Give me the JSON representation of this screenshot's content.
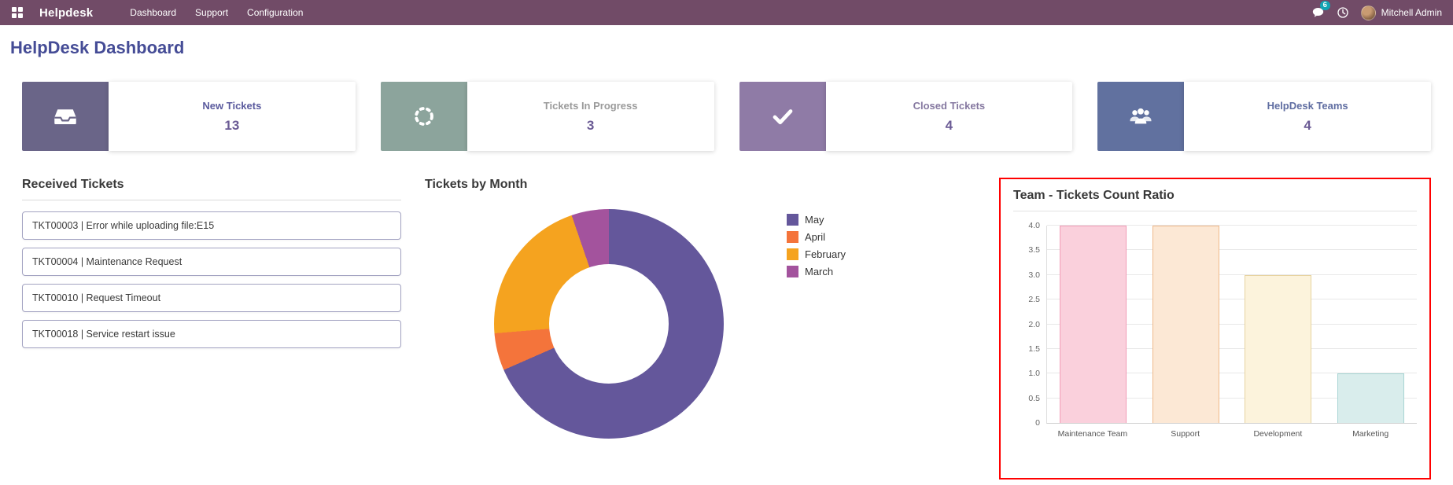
{
  "colors": {
    "navbar_bg": "#714B67",
    "title_color": "#454C96",
    "kpi_number_color": "#6B5B95",
    "badge_bg": "#12A5B4",
    "highlight_border": "#FF0000"
  },
  "navbar": {
    "brand": "Helpdesk",
    "menu": [
      "Dashboard",
      "Support",
      "Configuration"
    ],
    "messages_badge": "6",
    "user_name": "Mitchell Admin",
    "icons": [
      "apps-grid-icon",
      "messages-icon",
      "activity-clock-icon"
    ]
  },
  "page": {
    "title": "HelpDesk Dashboard"
  },
  "kpis": [
    {
      "label": "New Tickets",
      "value": "13",
      "icon": "inbox-icon",
      "box_color": "#6A6588",
      "label_color": "#5B5B9E"
    },
    {
      "label": "Tickets In Progress",
      "value": "3",
      "icon": "spinner-icon",
      "box_color": "#8CA49C",
      "label_color": "#9B9B9B"
    },
    {
      "label": "Closed Tickets",
      "value": "4",
      "icon": "check-icon",
      "box_color": "#8F7BA6",
      "label_color": "#8578A0"
    },
    {
      "label": "HelpDesk Teams",
      "value": "4",
      "icon": "users-icon",
      "box_color": "#61719F",
      "label_color": "#5F6DA1"
    }
  ],
  "received_tickets": {
    "title": "Received Tickets",
    "items": [
      "TKT00003 | Error while uploading file:E15",
      "TKT00004 | Maintenance Request",
      "TKT00010 | Request Timeout",
      "TKT00018 | Service restart issue"
    ]
  },
  "chart_data": [
    {
      "type": "pie",
      "donut": true,
      "title": "Tickets by Month",
      "legend_position": "right",
      "labels": [
        "May",
        "April",
        "February",
        "March"
      ],
      "values": [
        13,
        1,
        4,
        1
      ],
      "colors": [
        "#64579B",
        "#F4743B",
        "#F5A31F",
        "#A3539D"
      ]
    },
    {
      "type": "bar",
      "title": "Team - Tickets Count Ratio",
      "categories": [
        "Maintenance Team",
        "Support",
        "Development",
        "Marketing"
      ],
      "values": [
        4,
        4,
        3,
        1
      ],
      "bar_fill": [
        "#FAD0DC",
        "#FCE8D5",
        "#FCF3DC",
        "#D9EDEC"
      ],
      "bar_border": [
        "#F29CB7",
        "#EFB98A",
        "#E7D3A0",
        "#A8D5D4"
      ],
      "ylim": [
        0,
        4
      ],
      "yticks": [
        "0",
        "0.5",
        "1.0",
        "1.5",
        "2.0",
        "2.5",
        "3.0",
        "3.5",
        "4.0"
      ],
      "grid": true,
      "highlighted": true
    }
  ]
}
